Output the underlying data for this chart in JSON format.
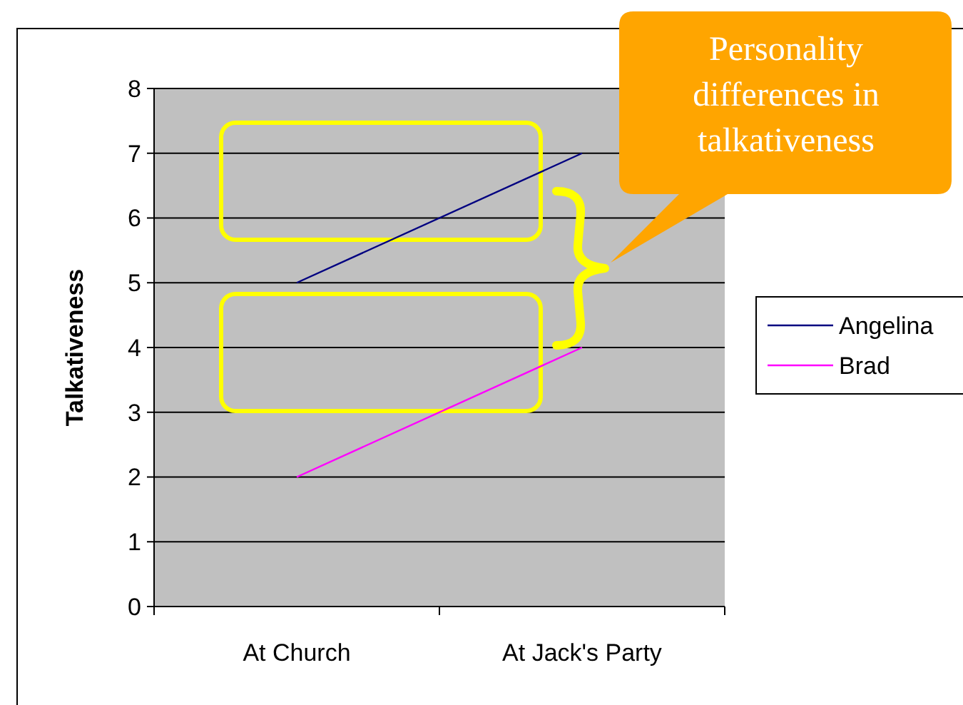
{
  "chart_data": {
    "type": "line",
    "ylabel": "Talkativeness",
    "categories": [
      "At Church",
      "At Jack's Party"
    ],
    "series": [
      {
        "name": "Angelina",
        "color": "#000080",
        "values": [
          5,
          7
        ]
      },
      {
        "name": "Brad",
        "color": "#ff00ff",
        "values": [
          2,
          4
        ]
      }
    ],
    "ylim": [
      0,
      8
    ],
    "yticks": [
      0,
      1,
      2,
      3,
      4,
      5,
      6,
      7,
      8
    ],
    "grid": "y",
    "legend": "right",
    "marker": "none",
    "annotations": [
      "Personality differences in talkativeness"
    ]
  }
}
